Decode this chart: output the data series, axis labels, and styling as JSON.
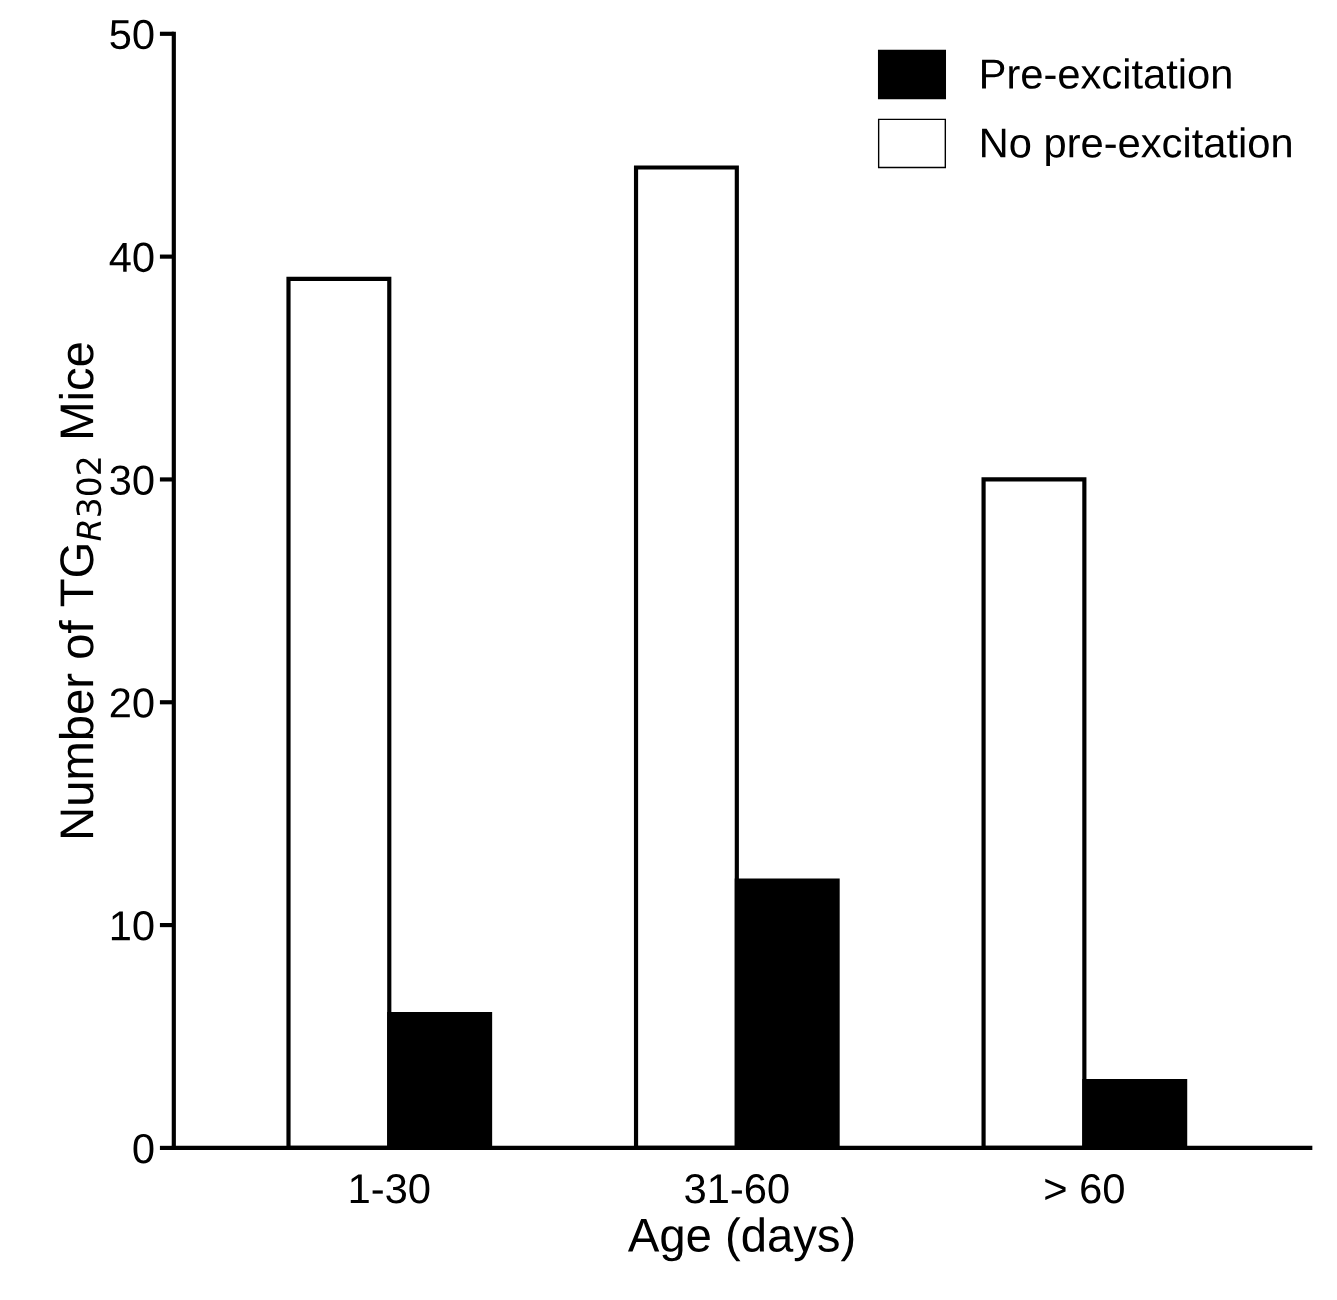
{
  "chart_data": {
    "type": "bar",
    "xlabel": "Age (days)",
    "ylabel": "Number of TG$_{R302}$ Mice",
    "categories": [
      "1-30",
      "31-60",
      "> 60"
    ],
    "series": [
      {
        "name": "No pre-excitation",
        "color": "#ffffff",
        "values": [
          39,
          44,
          30
        ]
      },
      {
        "name": "Pre-excitation",
        "color": "#000000",
        "values": [
          6,
          12,
          3
        ]
      }
    ],
    "ylim": [
      0,
      50
    ],
    "yticks": [
      0,
      10,
      20,
      30,
      40,
      50
    ],
    "grid": false,
    "legend": "top right"
  }
}
